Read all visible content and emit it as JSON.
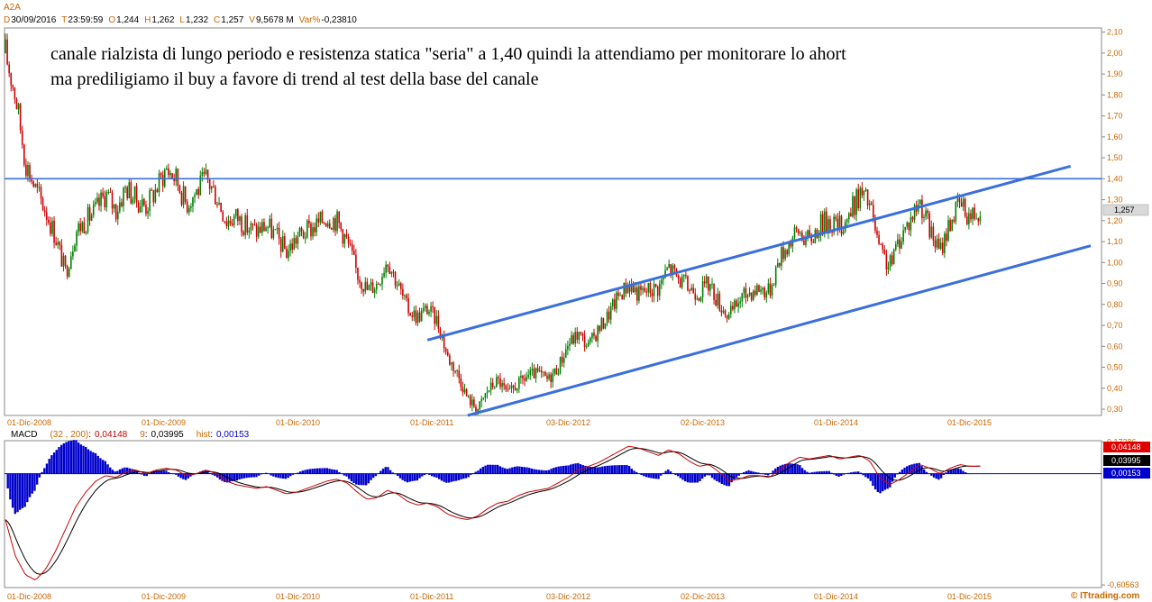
{
  "header": {
    "symbol": "A2A",
    "quote_line": [
      {
        "key": "D",
        "value": "30/09/2016"
      },
      {
        "key": "T",
        "value": "23:59:59"
      },
      {
        "key": "O",
        "value": "1,244"
      },
      {
        "key": "H",
        "value": "1,262"
      },
      {
        "key": "L",
        "value": "1,232"
      },
      {
        "key": "C",
        "value": "1,257"
      },
      {
        "key": "V",
        "value": "9,5678 M"
      },
      {
        "key": "Var%",
        "value": "-0,23810"
      }
    ]
  },
  "annotation": {
    "line1": "canale rialzista di lungo periodo e resistenza statica \"seria\" a 1,40 quindi la attendiamo per monitorare lo ahort",
    "line2": "ma prediligiamo il buy a favore di trend al test della base del canale"
  },
  "colors": {
    "up_candle": "#008000",
    "down_candle": "#cc0000",
    "trendline": "#3a6fdc",
    "macd_line": "#cc0000",
    "signal_line": "#000000",
    "histogram": "#0000cc",
    "header_key": "#cc6600",
    "header_value": "#000000",
    "axis_text": "#cc6600",
    "watermark": "#cc6600"
  },
  "chart_data": [
    {
      "type": "candlestick",
      "name": "price",
      "x_ticks": [
        "01-Dic-2008",
        "01-Dic-2009",
        "01-Dic-2010",
        "01-Dic-2011",
        "03-Dic-2012",
        "02-Dic-2013",
        "01-Dic-2014",
        "01-Dic-2015"
      ],
      "y_ticks": [
        "2,10",
        "2,00",
        "1,90",
        "1,80",
        "1,70",
        "1,60",
        "1,50",
        "1,40",
        "1,30",
        "1,20",
        "1,10",
        "1,00",
        "0,90",
        "0,80",
        "0,70",
        "0,60",
        "0,50",
        "0,40",
        "0,30"
      ],
      "ylim": [
        0.27,
        2.12
      ],
      "last_price_label": "1,257",
      "last_price": 1.257,
      "price_path": [
        [
          0,
          2.0
        ],
        [
          1,
          1.8
        ],
        [
          2,
          1.48
        ],
        [
          3,
          1.35
        ],
        [
          4,
          1.25
        ],
        [
          5,
          1.12
        ],
        [
          6,
          0.95
        ],
        [
          7,
          1.15
        ],
        [
          8,
          1.2
        ],
        [
          9,
          1.25
        ],
        [
          10,
          1.33
        ],
        [
          11,
          1.25
        ],
        [
          12,
          1.36
        ],
        [
          13,
          1.3
        ],
        [
          14,
          1.27
        ],
        [
          15,
          1.35
        ],
        [
          16,
          1.45
        ],
        [
          17,
          1.4
        ],
        [
          18,
          1.28
        ],
        [
          19,
          1.34
        ],
        [
          20,
          1.4
        ],
        [
          21,
          1.32
        ],
        [
          22,
          1.2
        ],
        [
          23,
          1.22
        ],
        [
          24,
          1.17
        ],
        [
          25,
          1.15
        ],
        [
          26,
          1.18
        ],
        [
          27,
          1.12
        ],
        [
          28,
          1.05
        ],
        [
          29,
          1.12
        ],
        [
          30,
          1.15
        ],
        [
          31,
          1.18
        ],
        [
          32,
          1.22
        ],
        [
          33,
          1.2
        ],
        [
          34,
          1.1
        ],
        [
          35,
          0.95
        ],
        [
          36,
          0.87
        ],
        [
          37,
          0.9
        ],
        [
          38,
          1.02
        ],
        [
          39,
          0.9
        ],
        [
          40,
          0.78
        ],
        [
          41,
          0.74
        ],
        [
          42,
          0.78
        ],
        [
          43,
          0.72
        ],
        [
          44,
          0.55
        ],
        [
          45,
          0.47
        ],
        [
          46,
          0.35
        ],
        [
          47,
          0.3
        ],
        [
          48,
          0.39
        ],
        [
          49,
          0.44
        ],
        [
          50,
          0.37
        ],
        [
          51,
          0.42
        ],
        [
          52,
          0.46
        ],
        [
          53,
          0.47
        ],
        [
          54,
          0.44
        ],
        [
          55,
          0.5
        ],
        [
          56,
          0.61
        ],
        [
          57,
          0.66
        ],
        [
          58,
          0.6
        ],
        [
          59,
          0.68
        ],
        [
          60,
          0.75
        ],
        [
          61,
          0.84
        ],
        [
          62,
          0.9
        ],
        [
          63,
          0.85
        ],
        [
          64,
          0.87
        ],
        [
          65,
          0.88
        ],
        [
          66,
          0.98
        ],
        [
          67,
          0.92
        ],
        [
          68,
          0.88
        ],
        [
          69,
          0.86
        ],
        [
          70,
          0.9
        ],
        [
          71,
          0.81
        ],
        [
          72,
          0.74
        ],
        [
          73,
          0.82
        ],
        [
          74,
          0.86
        ],
        [
          75,
          0.88
        ],
        [
          76,
          0.86
        ],
        [
          77,
          1.02
        ],
        [
          78,
          1.1
        ],
        [
          79,
          1.15
        ],
        [
          80,
          1.1
        ],
        [
          81,
          1.18
        ],
        [
          82,
          1.2
        ],
        [
          83,
          1.17
        ],
        [
          84,
          1.23
        ],
        [
          85,
          1.33
        ],
        [
          86,
          1.28
        ],
        [
          87,
          1.05
        ],
        [
          88,
          0.98
        ],
        [
          89,
          1.12
        ],
        [
          90,
          1.2
        ],
        [
          91,
          1.3
        ],
        [
          92,
          1.15
        ],
        [
          93,
          1.05
        ],
        [
          94,
          1.2
        ],
        [
          95,
          1.28
        ],
        [
          96,
          1.22
        ],
        [
          97,
          1.257
        ]
      ],
      "horizontal_line": {
        "value": 1.4
      },
      "channel_upper": {
        "from": [
          42,
          0.63
        ],
        "to": [
          106,
          1.46
        ]
      },
      "channel_lower": {
        "from": [
          46,
          0.27
        ],
        "to": [
          108,
          1.08
        ]
      }
    },
    {
      "type": "line",
      "name": "MACD",
      "label": "MACD",
      "params": "(32 , 200)",
      "values_text": {
        "macd": "0,04148",
        "signal_num": "9",
        "signal": "0,03995",
        "hist_label": "hist",
        "hist": "0,00153"
      },
      "y_ticks": [
        "0,17286",
        "-0,60563"
      ],
      "ylim": [
        -0.62,
        0.18
      ],
      "value_boxes": [
        "0,04148",
        "0,03995",
        "0,00153"
      ],
      "macd_path": [
        [
          0,
          -0.25
        ],
        [
          1,
          -0.45
        ],
        [
          2,
          -0.55
        ],
        [
          3,
          -0.58
        ],
        [
          4,
          -0.52
        ],
        [
          5,
          -0.42
        ],
        [
          6,
          -0.3
        ],
        [
          7,
          -0.18
        ],
        [
          8,
          -0.1
        ],
        [
          9,
          -0.04
        ],
        [
          10,
          -0.01
        ],
        [
          11,
          -0.02
        ],
        [
          12,
          0.01
        ],
        [
          13,
          0.02
        ],
        [
          14,
          0.0
        ],
        [
          15,
          0.02
        ],
        [
          16,
          0.03
        ],
        [
          17,
          0.02
        ],
        [
          18,
          -0.01
        ],
        [
          19,
          0.0
        ],
        [
          20,
          0.02
        ],
        [
          21,
          0.0
        ],
        [
          22,
          -0.04
        ],
        [
          23,
          -0.06
        ],
        [
          24,
          -0.07
        ],
        [
          25,
          -0.08
        ],
        [
          26,
          -0.07
        ],
        [
          27,
          -0.09
        ],
        [
          28,
          -0.11
        ],
        [
          29,
          -0.1
        ],
        [
          30,
          -0.08
        ],
        [
          31,
          -0.06
        ],
        [
          32,
          -0.04
        ],
        [
          33,
          -0.03
        ],
        [
          34,
          -0.05
        ],
        [
          35,
          -0.1
        ],
        [
          36,
          -0.14
        ],
        [
          37,
          -0.13
        ],
        [
          38,
          -0.09
        ],
        [
          39,
          -0.11
        ],
        [
          40,
          -0.15
        ],
        [
          41,
          -0.17
        ],
        [
          42,
          -0.16
        ],
        [
          43,
          -0.18
        ],
        [
          44,
          -0.22
        ],
        [
          45,
          -0.24
        ],
        [
          46,
          -0.25
        ],
        [
          47,
          -0.23
        ],
        [
          48,
          -0.19
        ],
        [
          49,
          -0.16
        ],
        [
          50,
          -0.15
        ],
        [
          51,
          -0.12
        ],
        [
          52,
          -0.1
        ],
        [
          53,
          -0.09
        ],
        [
          54,
          -0.08
        ],
        [
          55,
          -0.05
        ],
        [
          56,
          -0.02
        ],
        [
          57,
          0.02
        ],
        [
          58,
          0.04
        ],
        [
          59,
          0.06
        ],
        [
          60,
          0.09
        ],
        [
          61,
          0.12
        ],
        [
          62,
          0.15
        ],
        [
          63,
          0.14
        ],
        [
          64,
          0.12
        ],
        [
          65,
          0.1
        ],
        [
          66,
          0.13
        ],
        [
          67,
          0.11
        ],
        [
          68,
          0.07
        ],
        [
          69,
          0.04
        ],
        [
          70,
          0.05
        ],
        [
          71,
          0.01
        ],
        [
          72,
          -0.04
        ],
        [
          73,
          -0.03
        ],
        [
          74,
          -0.01
        ],
        [
          75,
          -0.01
        ],
        [
          76,
          -0.02
        ],
        [
          77,
          0.02
        ],
        [
          78,
          0.06
        ],
        [
          79,
          0.09
        ],
        [
          80,
          0.08
        ],
        [
          81,
          0.09
        ],
        [
          82,
          0.1
        ],
        [
          83,
          0.08
        ],
        [
          84,
          0.09
        ],
        [
          85,
          0.1
        ],
        [
          86,
          0.07
        ],
        [
          87,
          -0.02
        ],
        [
          88,
          -0.06
        ],
        [
          89,
          -0.03
        ],
        [
          90,
          0.01
        ],
        [
          91,
          0.05
        ],
        [
          92,
          0.03
        ],
        [
          93,
          0.0
        ],
        [
          94,
          0.03
        ],
        [
          95,
          0.05
        ],
        [
          96,
          0.04
        ],
        [
          97,
          0.04148
        ]
      ]
    }
  ],
  "watermark": "© ITtrading.com"
}
